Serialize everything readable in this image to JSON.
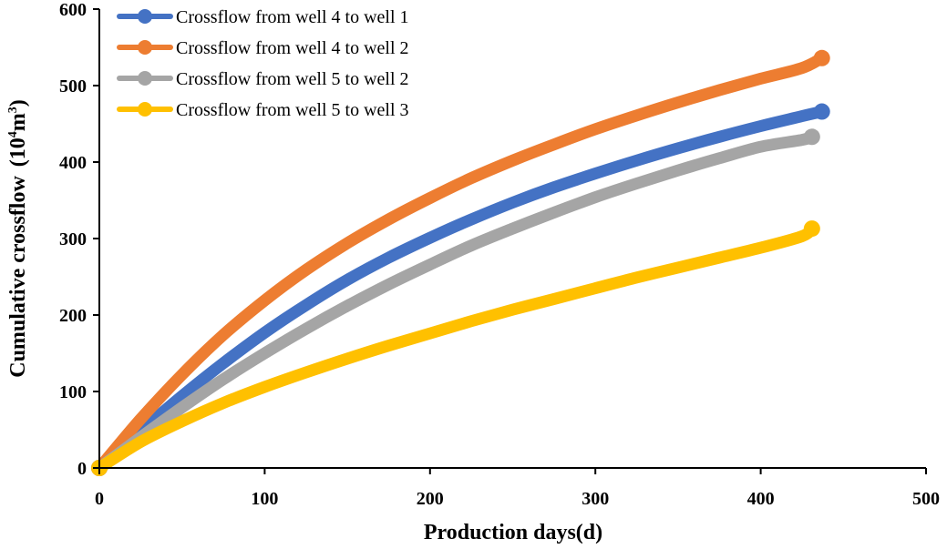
{
  "chart_data": {
    "type": "line",
    "title": "",
    "xlabel": "Production days(d)",
    "ylabel": "Cumulative crossflow",
    "ylabel_unit": "(10",
    "ylabel_unit_exp1": "4",
    "ylabel_unit_mid": "m",
    "ylabel_unit_exp2": "3",
    "ylabel_unit_close": ")",
    "xlim": [
      0,
      500
    ],
    "ylim": [
      0,
      600
    ],
    "xticks": [
      0,
      100,
      200,
      300,
      400,
      500
    ],
    "yticks": [
      0,
      100,
      200,
      300,
      400,
      500,
      600
    ],
    "grid": false,
    "legend_position": "top-left",
    "series": [
      {
        "name": "Crossflow from well 4 to well 1",
        "color": "#4472C4",
        "x": [
          0,
          25,
          50,
          75,
          100,
          125,
          150,
          175,
          200,
          225,
          250,
          275,
          300,
          325,
          350,
          375,
          400,
          425,
          437
        ],
        "y": [
          0,
          48,
          94,
          137,
          177,
          213,
          246,
          275,
          301,
          325,
          347,
          367,
          385,
          402,
          418,
          433,
          447,
          460,
          466
        ]
      },
      {
        "name": "Crossflow from well 4 to well 2",
        "color": "#ED7D31",
        "x": [
          0,
          25,
          50,
          75,
          100,
          125,
          150,
          175,
          200,
          225,
          250,
          275,
          300,
          325,
          350,
          375,
          400,
          425,
          437
        ],
        "y": [
          0,
          64,
          122,
          174,
          219,
          259,
          294,
          325,
          353,
          379,
          402,
          423,
          443,
          461,
          478,
          494,
          509,
          523,
          536
        ]
      },
      {
        "name": "Crossflow from well 5 to well 2",
        "color": "#A5A5A5",
        "x": [
          0,
          25,
          50,
          75,
          100,
          125,
          150,
          175,
          200,
          225,
          250,
          275,
          300,
          325,
          350,
          375,
          400,
          425,
          431
        ],
        "y": [
          0,
          40,
          79,
          116,
          150,
          182,
          212,
          240,
          266,
          291,
          313,
          334,
          354,
          372,
          389,
          405,
          420,
          429,
          433
        ]
      },
      {
        "name": "Crossflow from well 5 to well 3",
        "color": "#FFC000",
        "x": [
          0,
          25,
          50,
          75,
          100,
          125,
          150,
          175,
          200,
          225,
          250,
          275,
          300,
          325,
          350,
          375,
          400,
          425,
          431
        ],
        "y": [
          0,
          34,
          61,
          85,
          106,
          125,
          143,
          160,
          176,
          192,
          207,
          221,
          235,
          249,
          262,
          275,
          288,
          303,
          313
        ]
      }
    ]
  }
}
